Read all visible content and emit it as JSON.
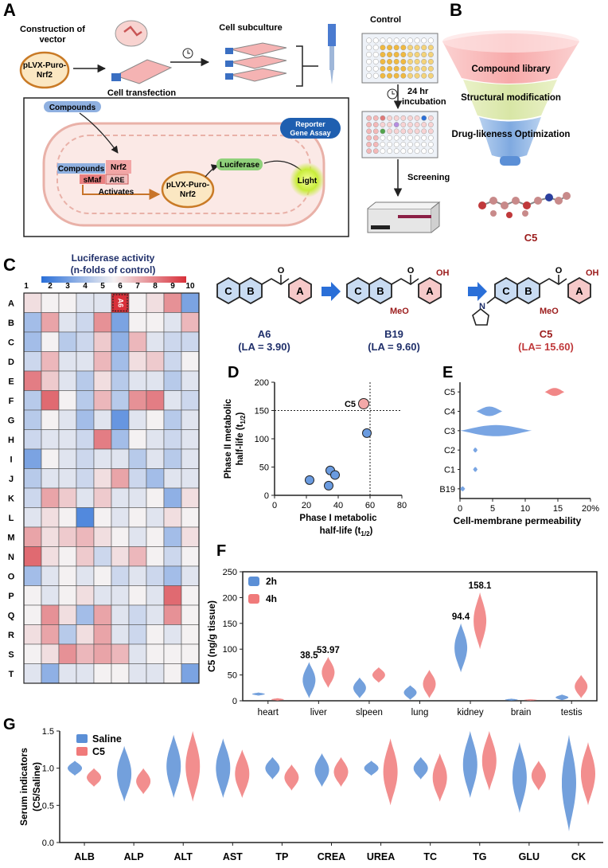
{
  "panels": {
    "A": {
      "letter": "A",
      "construction_line1": "Construction of",
      "construction_line2": "vector",
      "plasmid_line1": "pLVX-Puro-",
      "plasmid_line2": "Nrf2",
      "cell_transfection": "Cell transfection",
      "cell_subculture": "Cell subculture",
      "control": "Control",
      "incubation_line1": "24 hr",
      "incubation_line2": "incubation",
      "screening": "Screening",
      "compounds": "Compounds",
      "compounds2": "Compounds",
      "nrf2": "Nrf2",
      "smaf": "sMaf",
      "are": "ARE",
      "activates": "Activates",
      "inner_plasmid_line1": "pLVX-Puro-",
      "inner_plasmid_line2": "Nrf2",
      "luciferase": "Luciferase",
      "reporter_line1": "Reporter",
      "reporter_line2": "Gene Assay",
      "light": "Light"
    },
    "B": {
      "letter": "B",
      "funnel": [
        "Compound library",
        "Structural modification",
        "Drug-likeness Optimization"
      ],
      "compound": "C5"
    },
    "C": {
      "letter": "C",
      "title_line1": "Luciferase activity",
      "title_line2": "(n-folds of control)",
      "col_labels": [
        "1",
        "2",
        "3",
        "4",
        "5",
        "6",
        "7",
        "8",
        "9",
        "10"
      ],
      "row_labels": [
        "A",
        "B",
        "C",
        "D",
        "E",
        "F",
        "G",
        "H",
        "I",
        "J",
        "K",
        "L",
        "M",
        "N",
        "O",
        "P",
        "Q",
        "R",
        "S",
        "T"
      ],
      "highlight": "A6",
      "structures": [
        {
          "name": "A6",
          "la": "(LA = 3.90)"
        },
        {
          "name": "B19",
          "la": "(LA = 9.60)"
        },
        {
          "name": "C5",
          "la": "(LA= 15.60)"
        }
      ],
      "ring_labels": [
        "C",
        "B",
        "A"
      ],
      "substituents": {
        "oh": "OH",
        "meo": "MeO",
        "n": "N",
        "o": "O"
      }
    },
    "D": {
      "letter": "D",
      "point_label": "C5"
    },
    "E": {
      "letter": "E"
    },
    "F": {
      "letter": "F"
    },
    "G": {
      "letter": "G"
    }
  },
  "heatmap_data": {
    "type": "heatmap",
    "rows": 20,
    "cols": 10,
    "values": [
      [
        0.55,
        0.5,
        0.5,
        0.45,
        0.45,
        1.0,
        0.5,
        0.55,
        0.75,
        0.2
      ],
      [
        0.3,
        0.7,
        0.45,
        0.4,
        0.75,
        0.2,
        0.5,
        0.5,
        0.45,
        0.65
      ],
      [
        0.3,
        0.5,
        0.35,
        0.4,
        0.6,
        0.25,
        0.65,
        0.45,
        0.4,
        0.4
      ],
      [
        0.4,
        0.65,
        0.45,
        0.45,
        0.65,
        0.3,
        0.55,
        0.6,
        0.4,
        0.5
      ],
      [
        0.8,
        0.6,
        0.45,
        0.35,
        0.55,
        0.35,
        0.45,
        0.45,
        0.35,
        0.45
      ],
      [
        0.35,
        0.85,
        0.5,
        0.35,
        0.65,
        0.35,
        0.75,
        0.8,
        0.45,
        0.4
      ],
      [
        0.35,
        0.5,
        0.45,
        0.3,
        0.45,
        0.15,
        0.45,
        0.5,
        0.35,
        0.45
      ],
      [
        0.4,
        0.45,
        0.45,
        0.4,
        0.8,
        0.3,
        0.5,
        0.45,
        0.4,
        0.45
      ],
      [
        0.2,
        0.5,
        0.45,
        0.4,
        0.45,
        0.45,
        0.35,
        0.45,
        0.35,
        0.45
      ],
      [
        0.35,
        0.45,
        0.45,
        0.4,
        0.55,
        0.7,
        0.4,
        0.3,
        0.45,
        0.45
      ],
      [
        0.4,
        0.7,
        0.6,
        0.45,
        0.6,
        0.45,
        0.45,
        0.5,
        0.25,
        0.55
      ],
      [
        0.45,
        0.55,
        0.5,
        0.1,
        0.5,
        0.45,
        0.5,
        0.45,
        0.55,
        0.5
      ],
      [
        0.7,
        0.55,
        0.6,
        0.65,
        0.55,
        0.5,
        0.45,
        0.5,
        0.3,
        0.55
      ],
      [
        0.85,
        0.55,
        0.5,
        0.6,
        0.4,
        0.55,
        0.65,
        0.5,
        0.4,
        0.5
      ],
      [
        0.3,
        0.45,
        0.5,
        0.45,
        0.5,
        0.4,
        0.45,
        0.4,
        0.3,
        0.45
      ],
      [
        0.5,
        0.45,
        0.5,
        0.55,
        0.45,
        0.45,
        0.5,
        0.45,
        0.85,
        0.5
      ],
      [
        0.5,
        0.75,
        0.55,
        0.3,
        0.7,
        0.45,
        0.4,
        0.45,
        0.75,
        0.5
      ],
      [
        0.55,
        0.7,
        0.35,
        0.55,
        0.7,
        0.45,
        0.4,
        0.5,
        0.45,
        0.5
      ],
      [
        0.5,
        0.55,
        0.75,
        0.65,
        0.7,
        0.65,
        0.45,
        0.5,
        0.5,
        0.5
      ],
      [
        0.45,
        0.25,
        0.45,
        0.45,
        0.5,
        0.5,
        0.45,
        0.45,
        0.5,
        0.2
      ]
    ]
  },
  "chart_data": [
    {
      "type": "scatter",
      "panel": "D",
      "xlabel": "Phase I  metabolic half-life (t1/2)",
      "xlabel_line1": "Phase I  metabolic",
      "xlabel_line2": "half-life (t",
      "ylabel_line1": "Phase II metabolic",
      "ylabel_line2": "half-life (t",
      "xlim": [
        0,
        80
      ],
      "ylim": [
        0,
        200
      ],
      "xticks": [
        "0",
        "20",
        "40",
        "60",
        "80"
      ],
      "yticks": [
        "0",
        "50",
        "100",
        "150",
        "200"
      ],
      "threshold_x": 60,
      "threshold_y": 150,
      "points": [
        {
          "x": 22,
          "y": 27
        },
        {
          "x": 34,
          "y": 17
        },
        {
          "x": 35,
          "y": 44
        },
        {
          "x": 38,
          "y": 36
        },
        {
          "x": 58,
          "y": 110
        },
        {
          "x": 56,
          "y": 162,
          "label": "C5"
        }
      ]
    },
    {
      "type": "violin",
      "panel": "E",
      "orientation": "horizontal",
      "xlabel": "Cell-membrane permeability",
      "xlim": [
        0,
        20
      ],
      "xticks": [
        "0",
        "5",
        "10",
        "15",
        "20%"
      ],
      "categories": [
        "C5",
        "C4",
        "C3",
        "C2",
        "C1",
        "B19"
      ],
      "centers": [
        14.5,
        4.5,
        3.0,
        2.3,
        2.3,
        0.3
      ],
      "ranges": [
        [
          13,
          16
        ],
        [
          2.5,
          6.5
        ],
        [
          0,
          11
        ],
        [
          2,
          2.7
        ],
        [
          2,
          2.7
        ],
        [
          0,
          0.8
        ]
      ]
    },
    {
      "type": "violin",
      "panel": "F",
      "ylabel": "C5 (ng/g tissue)",
      "ylim": [
        0,
        250
      ],
      "yticks": [
        "0",
        "50",
        "100",
        "150",
        "200",
        "250"
      ],
      "categories": [
        "heart",
        "liver",
        "slpeen",
        "lung",
        "kidney",
        "brain",
        "testis"
      ],
      "series": [
        {
          "name": "2h",
          "color": "#5b8fd6",
          "centers": [
            14,
            38.5,
            20,
            12,
            94.4,
            2,
            5
          ],
          "ranges": [
            [
              10,
              16
            ],
            [
              5,
              75
            ],
            [
              5,
              45
            ],
            [
              2,
              30
            ],
            [
              55,
              150
            ],
            [
              0,
              4
            ],
            [
              1,
              12
            ]
          ]
        },
        {
          "name": "4h",
          "color": "#f07a7a",
          "centers": [
            2,
            53.97,
            50,
            25,
            158.1,
            1,
            25
          ],
          "ranges": [
            [
              0,
              5
            ],
            [
              25,
              85
            ],
            [
              35,
              65
            ],
            [
              5,
              60
            ],
            [
              100,
              210
            ],
            [
              0,
              3
            ],
            [
              5,
              50
            ]
          ]
        }
      ],
      "annotations": [
        {
          "category": "liver",
          "series": "2h",
          "text": "38.5"
        },
        {
          "category": "liver",
          "series": "4h",
          "text": "53.97"
        },
        {
          "category": "kidney",
          "series": "2h",
          "text": "94.4"
        },
        {
          "category": "kidney",
          "series": "4h",
          "text": "158.1"
        }
      ]
    },
    {
      "type": "violin",
      "panel": "G",
      "ylabel_line1": "Serum indicators",
      "ylabel_line2": "(C5/Saline)",
      "ylim": [
        0,
        1.5
      ],
      "yticks": [
        "0.0",
        "0.5",
        "1.0",
        "1.5"
      ],
      "categories": [
        "ALB",
        "ALP",
        "ALT",
        "AST",
        "TP",
        "CREA",
        "UREA",
        "TC",
        "TG",
        "GLU",
        "CK"
      ],
      "series": [
        {
          "name": "Saline",
          "color": "#5b8fd6",
          "centers": [
            1.0,
            1.0,
            1.0,
            1.0,
            1.0,
            1.0,
            1.0,
            1.0,
            1.0,
            1.0,
            1.0
          ],
          "ranges": [
            [
              0.9,
              1.1
            ],
            [
              0.55,
              1.3
            ],
            [
              0.6,
              1.45
            ],
            [
              0.6,
              1.4
            ],
            [
              0.85,
              1.15
            ],
            [
              0.75,
              1.2
            ],
            [
              0.9,
              1.1
            ],
            [
              0.85,
              1.15
            ],
            [
              0.6,
              1.5
            ],
            [
              0.4,
              1.35
            ],
            [
              0.15,
              1.45
            ]
          ]
        },
        {
          "name": "C5",
          "color": "#f07a7a",
          "centers": [
            0.9,
            0.85,
            0.95,
            0.95,
            0.9,
            0.95,
            0.9,
            0.9,
            1.1,
            0.9,
            0.95
          ],
          "ranges": [
            [
              0.75,
              1.0
            ],
            [
              0.65,
              1.0
            ],
            [
              0.55,
              1.5
            ],
            [
              0.6,
              1.25
            ],
            [
              0.7,
              1.05
            ],
            [
              0.75,
              1.15
            ],
            [
              0.5,
              1.4
            ],
            [
              0.55,
              1.2
            ],
            [
              0.7,
              1.5
            ],
            [
              0.7,
              1.1
            ],
            [
              0.5,
              1.35
            ]
          ]
        }
      ]
    }
  ]
}
